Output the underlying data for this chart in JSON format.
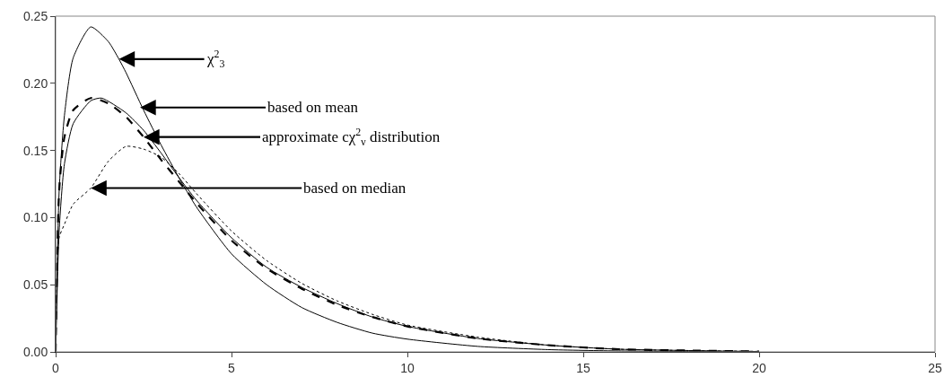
{
  "chart_data": {
    "type": "line",
    "xlim": [
      0,
      25
    ],
    "xticks": [
      0,
      5,
      10,
      15,
      20,
      25
    ],
    "ylim": [
      0,
      0.25
    ],
    "yticks": [
      {
        "value": 0,
        "label": "0.00"
      },
      {
        "value": 0.05,
        "label": "0.05"
      },
      {
        "value": 0.1,
        "label": "0.10"
      },
      {
        "value": 0.15,
        "label": "0.15"
      },
      {
        "value": 0.2,
        "label": "0.20"
      },
      {
        "value": 0.25,
        "label": "0.25"
      }
    ],
    "grid": false,
    "marker": "none",
    "series": [
      {
        "color": "#000000",
        "line_style": "solid",
        "x": [
          0,
          0.1,
          0.25,
          0.5,
          1,
          1.5,
          1.8,
          2,
          2.5,
          3,
          3.5,
          4,
          5,
          6,
          7,
          8,
          9,
          10,
          12,
          14,
          16,
          18,
          20
        ],
        "values": [
          0,
          0.12,
          0.176,
          0.219,
          0.242,
          0.231,
          0.218,
          0.208,
          0.18,
          0.154,
          0.13,
          0.108,
          0.073,
          0.05,
          0.033,
          0.022,
          0.014,
          0.0095,
          0.0041,
          0.0017,
          0.0007,
          0.0003,
          0.0001
        ]
      },
      {
        "color": "#000000",
        "line_style": "solid",
        "x": [
          0,
          0.1,
          0.25,
          0.5,
          1,
          1.3,
          2,
          2.5,
          3,
          3.5,
          4,
          5,
          6,
          7,
          8,
          9,
          10,
          12,
          14,
          16,
          18,
          20
        ],
        "values": [
          0,
          0.09,
          0.14,
          0.17,
          0.187,
          0.189,
          0.178,
          0.165,
          0.148,
          0.13,
          0.113,
          0.085,
          0.063,
          0.048,
          0.036,
          0.026,
          0.019,
          0.01,
          0.005,
          0.002,
          0.001,
          0.0003
        ]
      },
      {
        "color": "#000000",
        "line_style": "dashed",
        "x": [
          0,
          0.1,
          0.25,
          0.5,
          1,
          1.5,
          2,
          2.5,
          3,
          3.5,
          4,
          5,
          6,
          7,
          8,
          9,
          10,
          12,
          14,
          16,
          18,
          20
        ],
        "values": [
          0,
          0.12,
          0.16,
          0.18,
          0.189,
          0.185,
          0.175,
          0.16,
          0.143,
          0.127,
          0.111,
          0.083,
          0.062,
          0.047,
          0.035,
          0.026,
          0.019,
          0.01,
          0.005,
          0.002,
          0.001,
          0.0003
        ]
      },
      {
        "color": "#000000",
        "line_style": "dotted",
        "x": [
          0,
          0.1,
          0.25,
          0.5,
          1,
          1.5,
          2,
          2.5,
          3,
          3.5,
          4,
          5,
          6,
          7,
          8,
          9,
          10,
          12,
          14,
          16,
          18,
          20
        ],
        "values": [
          0,
          0.085,
          0.095,
          0.11,
          0.122,
          0.142,
          0.153,
          0.151,
          0.145,
          0.133,
          0.118,
          0.09,
          0.068,
          0.051,
          0.038,
          0.028,
          0.02,
          0.011,
          0.005,
          0.002,
          0.001,
          0.0004
        ]
      }
    ],
    "annotations": [
      {
        "text": "χ$^{2}$$_{3}$",
        "x": 1.8,
        "y": 0.218
      },
      {
        "text": "based on mean",
        "x": 2.4,
        "y": 0.182
      },
      {
        "text": "approximate cχ$^{2}$$_{ν}$ distribution",
        "x": 2.5,
        "y": 0.16
      },
      {
        "text": "based on median",
        "x": 1,
        "y": 0.122
      }
    ]
  }
}
